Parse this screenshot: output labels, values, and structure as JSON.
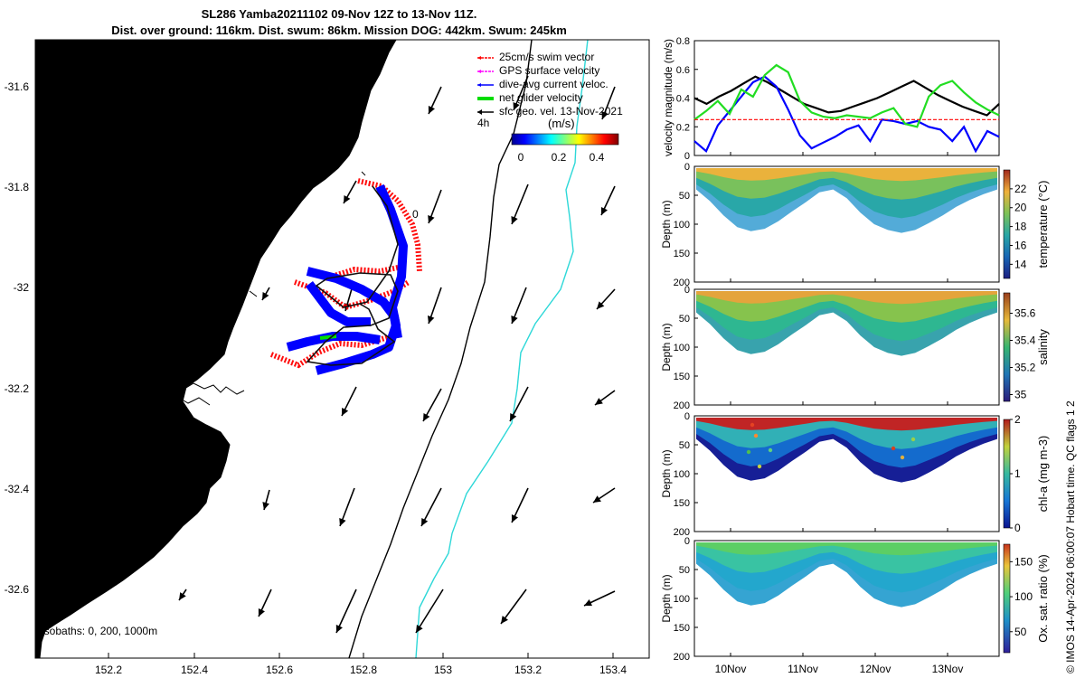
{
  "title": {
    "line1": "SL286 Yamba20211102 09-Nov 12Z to 13-Nov 11Z.",
    "line2": "Dist. over ground: 116km. Dist. swum: 86km. Mission DOG: 442km. Swum: 245km"
  },
  "map": {
    "x_ticks": [
      "152.2",
      "152.4",
      "152.6",
      "152.8",
      "153",
      "153.2",
      "153.4"
    ],
    "y_ticks": [
      "-31.6",
      "-31.8",
      "-32",
      "-32.2",
      "-32.4",
      "-32.6"
    ],
    "xlim": [
      152.05,
      153.48
    ],
    "ylim": [
      -32.74,
      -31.51
    ],
    "legend": [
      {
        "label": "25cm/s swim vector",
        "color": "#ff0000"
      },
      {
        "label": "GPS surface velocity",
        "color": "#ff00ff"
      },
      {
        "label": "dive-avg current veloc.",
        "color": "#0000ff"
      },
      {
        "label": "net glider velocity",
        "color": "#00dd00"
      },
      {
        "label": "sfc geo. vel. 13-Nov-2021",
        "color": "#000000"
      }
    ],
    "colorbar_label": "(m/s)",
    "colorbar_ticks": [
      "0",
      "0.2",
      "0.4"
    ],
    "time_label": "4h",
    "isobath_label": "isobaths: 0, 200, 1000m",
    "land_color": "#f9c897",
    "stray_mark": "0"
  },
  "side_note": "© IMOS 14-Apr-2024 06:00:07 Hobart time. QC flags 1  2",
  "chart_data": [
    {
      "type": "line",
      "ylabel": "velocity magnitude (m/s)",
      "ylim": [
        0,
        0.8
      ],
      "y_ticks": [
        "0",
        "0.2",
        "0.4",
        "0.6",
        "0.8"
      ],
      "series": [
        {
          "color": "#000000",
          "values": [
            0.4,
            0.36,
            0.41,
            0.45,
            0.5,
            0.55,
            0.51,
            0.46,
            0.41,
            0.36,
            0.33,
            0.3,
            0.31,
            0.34,
            0.37,
            0.4,
            0.44,
            0.48,
            0.52,
            0.47,
            0.42,
            0.38,
            0.34,
            0.31,
            0.28,
            0.36
          ]
        },
        {
          "color": "#0000ff",
          "values": [
            0.1,
            0.03,
            0.21,
            0.31,
            0.41,
            0.51,
            0.55,
            0.48,
            0.32,
            0.14,
            0.05,
            0.09,
            0.13,
            0.18,
            0.21,
            0.1,
            0.25,
            0.24,
            0.22,
            0.24,
            0.2,
            0.18,
            0.1,
            0.2,
            0.03,
            0.17,
            0.13
          ]
        },
        {
          "color": "#22dd22",
          "values": [
            0.25,
            0.31,
            0.38,
            0.29,
            0.46,
            0.41,
            0.56,
            0.63,
            0.58,
            0.38,
            0.3,
            0.27,
            0.26,
            0.28,
            0.27,
            0.26,
            0.3,
            0.33,
            0.22,
            0.2,
            0.41,
            0.49,
            0.52,
            0.44,
            0.37,
            0.32,
            0.28
          ]
        },
        {
          "color": "#ff0000",
          "values": [
            0.25,
            0.25,
            0.25,
            0.25,
            0.25,
            0.25,
            0.25,
            0.25,
            0.25,
            0.25,
            0.25,
            0.25,
            0.25,
            0.25,
            0.25,
            0.25,
            0.25,
            0.25,
            0.25,
            0.25,
            0.25,
            0.25,
            0.25,
            0.25,
            0.25,
            0.25
          ]
        }
      ]
    },
    {
      "type": "heatmap",
      "variable": "temperature",
      "cbar_label": "temperature (°C)",
      "cbar_ticks": [
        "14",
        "16",
        "18",
        "20",
        "22"
      ],
      "clim": [
        12.5,
        24
      ]
    },
    {
      "type": "heatmap",
      "variable": "salinity",
      "cbar_label": "salinity",
      "cbar_ticks": [
        "35",
        "35.2",
        "35.4",
        "35.6"
      ],
      "clim": [
        34.95,
        35.75
      ]
    },
    {
      "type": "heatmap",
      "variable": "chl-a",
      "cbar_label": "chl-a (mg m-3)",
      "cbar_ticks": [
        "0",
        "1",
        "2"
      ],
      "clim": [
        0,
        2
      ]
    },
    {
      "type": "heatmap",
      "variable": "oxygen",
      "cbar_label": "Ox. sat. ratio (%)",
      "cbar_ticks": [
        "50",
        "100",
        "150"
      ],
      "clim": [
        20,
        175
      ]
    }
  ],
  "profiles": {
    "ylabel": "Depth (m)",
    "y_ticks": [
      "0",
      "50",
      "100",
      "150",
      "200"
    ],
    "x_ticks": [
      "10Nov",
      "11Nov",
      "12Nov",
      "13Nov"
    ]
  }
}
